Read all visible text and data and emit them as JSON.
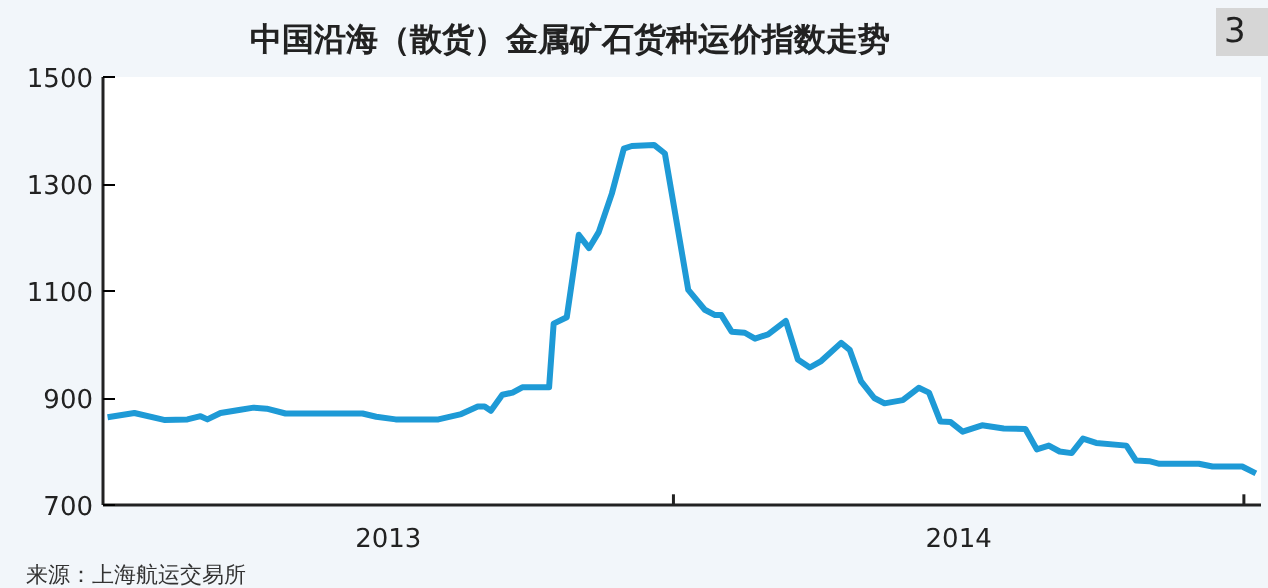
{
  "chart_data": {
    "type": "line",
    "title": "中国沿海（散货）金属矿石货种运价指数走势",
    "annotations": [
      "3",
      "来源：上海航运交易所"
    ],
    "x": [
      2013.008,
      2013.055,
      2013.107,
      2013.148,
      2013.171,
      2013.183,
      2013.206,
      2013.241,
      2013.264,
      2013.287,
      2013.32,
      2013.455,
      2013.479,
      2013.513,
      2013.588,
      2013.628,
      2013.657,
      2013.669,
      2013.68,
      2013.7,
      2013.718,
      2013.735,
      2013.776,
      2013.782,
      2013.79,
      2013.813,
      2013.834,
      2013.852,
      2013.869,
      2013.892,
      2013.913,
      2013.927,
      2013.966,
      2013.985,
      2014.026,
      2014.055,
      2014.073,
      2014.084,
      2014.102,
      2014.125,
      2014.143,
      2014.166,
      2014.197,
      2014.218,
      2014.239,
      2014.259,
      2014.294,
      2014.309,
      2014.329,
      2014.352,
      2014.37,
      2014.402,
      2014.43,
      2014.448,
      2014.468,
      2014.486,
      2014.507,
      2014.541,
      2014.579,
      2014.617,
      2014.637,
      2014.658,
      2014.677,
      2014.698,
      2014.718,
      2014.741,
      2014.794,
      2014.811,
      2014.834,
      2014.852,
      2014.921,
      2014.945,
      2014.997,
      2015.021
    ],
    "series": [
      {
        "color": "#1e9ad6",
        "values": [
          864,
          872,
          859,
          860,
          866,
          860,
          872,
          878,
          882,
          880,
          871,
          871,
          865,
          860,
          860,
          870,
          884,
          884,
          876,
          906,
          910,
          920,
          920,
          920,
          1039,
          1051,
          1205,
          1180,
          1210,
          1282,
          1366,
          1371,
          1373,
          1357,
          1102,
          1065,
          1055,
          1055,
          1024,
          1022,
          1011,
          1019,
          1044,
          972,
          957,
          969,
          1003,
          990,
          931,
          900,
          890,
          896,
          919,
          910,
          856,
          855,
          837,
          849,
          843,
          842,
          804,
          811,
          800,
          797,
          824,
          816,
          811,
          783,
          782,
          777,
          777,
          772,
          772,
          759
        ]
      }
    ],
    "xlim": [
      2013,
      2015.03
    ],
    "ylim": [
      700,
      1500
    ],
    "xticks": [
      {
        "value": 2013.5,
        "label": "2013"
      },
      {
        "value": 2014,
        "label": null
      },
      {
        "value": 2014.5,
        "label": "2014"
      },
      {
        "value": 2015,
        "label": null
      }
    ],
    "yticks": [
      700,
      900,
      1100,
      1300,
      1500
    ],
    "grid": false
  }
}
